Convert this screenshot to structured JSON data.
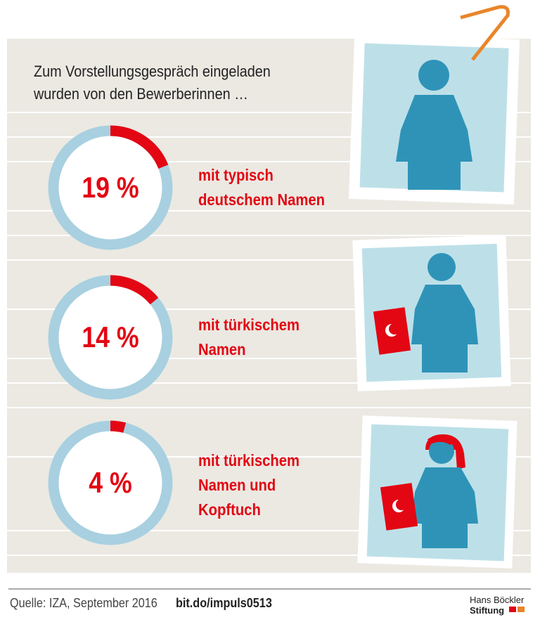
{
  "chart_data": {
    "type": "donut",
    "title": "Zum Vorstellungsgespräch eingeladen\nwurden von den Bewerberinnen …",
    "categories": [
      "mit typisch\ndeutschem Namen",
      "mit türkischem\nNamen",
      "mit türkischem\nNamen und\nKopftuch"
    ],
    "values": [
      19,
      14,
      4
    ],
    "value_labels": [
      "19 %",
      "14 %",
      "4 %"
    ],
    "color": "#e30613",
    "track_color": "#a8d0e0"
  },
  "footer": {
    "source": "Quelle: IZA, September 2016",
    "link": "bit.do/impuls0513",
    "logo": [
      "Hans Böckler",
      "Stiftung"
    ]
  }
}
